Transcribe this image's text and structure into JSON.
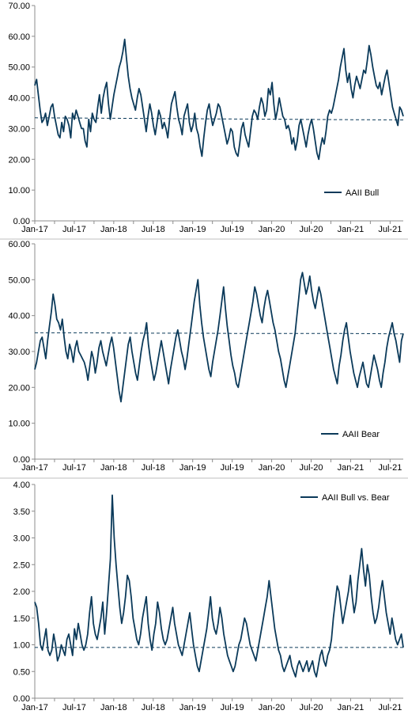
{
  "colors": {
    "series": "#0b3a5a",
    "axis": "#8c8c8c",
    "divider": "#bfbfbf"
  },
  "chart_data": [
    {
      "type": "line",
      "title": "",
      "xlabel": "",
      "ylabel": "",
      "x_tick_labels": [
        "Jan-17",
        "Jul-17",
        "Jan-18",
        "Jul-18",
        "Jan-19",
        "Jul-19",
        "Jan-20",
        "Jul-20",
        "Jan-21",
        "Jul-21"
      ],
      "y_tick_labels": [
        "0.00",
        "10.00",
        "20.00",
        "30.00",
        "40.00",
        "50.00",
        "60.00",
        "70.00"
      ],
      "ylim": [
        0,
        70
      ],
      "xlim": [
        0,
        56
      ],
      "grid": false,
      "legend_position": "bottom-right",
      "series": [
        {
          "name": "AAII Bull",
          "style": "solid",
          "values": [
            44,
            46,
            41,
            36,
            32,
            33,
            35,
            31,
            34,
            37,
            38,
            34,
            31,
            28,
            27,
            32,
            29,
            34,
            33,
            31,
            27,
            35,
            33,
            36,
            34,
            32,
            30,
            30,
            26,
            24,
            33,
            29,
            35,
            33,
            32,
            37,
            41,
            35,
            40,
            43,
            45,
            38,
            33,
            37,
            41,
            44,
            47,
            50,
            52,
            55,
            59,
            53,
            47,
            43,
            40,
            38,
            36,
            40,
            43,
            41,
            37,
            33,
            29,
            34,
            38,
            35,
            31,
            28,
            32,
            36,
            34,
            30,
            32,
            30,
            27,
            33,
            38,
            40,
            42,
            37,
            33,
            31,
            28,
            34,
            36,
            38,
            32,
            29,
            31,
            35,
            30,
            28,
            24,
            21,
            27,
            32,
            36,
            38,
            34,
            31,
            33,
            35,
            38,
            37,
            34,
            31,
            28,
            25,
            27,
            30,
            29,
            24,
            22,
            21,
            25,
            30,
            32,
            28,
            26,
            24,
            29,
            34,
            36,
            35,
            33,
            37,
            40,
            38,
            34,
            36,
            43,
            41,
            45,
            38,
            33,
            36,
            40,
            37,
            34,
            33,
            30,
            31,
            29,
            25,
            27,
            23,
            26,
            31,
            33,
            30,
            27,
            24,
            28,
            31,
            33,
            30,
            26,
            22,
            20,
            24,
            27,
            25,
            29,
            34,
            36,
            35,
            37,
            40,
            43,
            46,
            50,
            53,
            56,
            49,
            45,
            48,
            43,
            40,
            44,
            47,
            45,
            43,
            46,
            49,
            48,
            52,
            57,
            54,
            50,
            47,
            44,
            43,
            45,
            41,
            44,
            47,
            49,
            45,
            41,
            37,
            35,
            33,
            31,
            37,
            36,
            34
          ]
        },
        {
          "name": "",
          "style": "dashed",
          "values": [
            33.5,
            33.4,
            33.3,
            33.2,
            33.1,
            33.0,
            32.9,
            32.8
          ]
        }
      ]
    },
    {
      "type": "line",
      "title": "",
      "xlabel": "",
      "ylabel": "",
      "x_tick_labels": [
        "Jan-17",
        "Jul-17",
        "Jan-18",
        "Jul-18",
        "Jan-19",
        "Jul-19",
        "Jan-20",
        "Jul-20",
        "Jan-21",
        "Jul-21"
      ],
      "y_tick_labels": [
        "0.00",
        "10.00",
        "20.00",
        "30.00",
        "40.00",
        "50.00",
        "60.00"
      ],
      "ylim": [
        0,
        60
      ],
      "xlim": [
        0,
        56
      ],
      "grid": false,
      "legend_position": "bottom-right",
      "series": [
        {
          "name": "AAII Bear",
          "style": "solid",
          "values": [
            25,
            27,
            30,
            33,
            34,
            31,
            28,
            33,
            37,
            41,
            46,
            43,
            39,
            38,
            36,
            39,
            34,
            30,
            28,
            32,
            30,
            27,
            31,
            33,
            30,
            29,
            28,
            27,
            25,
            22,
            26,
            30,
            28,
            24,
            27,
            31,
            33,
            30,
            28,
            26,
            29,
            32,
            34,
            31,
            27,
            23,
            19,
            16,
            20,
            24,
            28,
            32,
            34,
            30,
            27,
            24,
            22,
            26,
            30,
            33,
            35,
            38,
            32,
            28,
            25,
            22,
            24,
            27,
            30,
            33,
            30,
            27,
            24,
            21,
            25,
            28,
            31,
            34,
            36,
            33,
            30,
            28,
            25,
            28,
            32,
            36,
            40,
            44,
            47,
            50,
            43,
            38,
            34,
            31,
            28,
            25,
            23,
            27,
            30,
            33,
            36,
            40,
            44,
            48,
            42,
            37,
            33,
            29,
            26,
            24,
            21,
            20,
            23,
            26,
            29,
            32,
            35,
            38,
            41,
            44,
            48,
            46,
            43,
            40,
            38,
            42,
            45,
            47,
            44,
            41,
            38,
            36,
            33,
            30,
            28,
            25,
            22,
            20,
            23,
            26,
            29,
            32,
            35,
            40,
            45,
            50,
            52,
            49,
            46,
            48,
            51,
            47,
            44,
            42,
            45,
            48,
            46,
            43,
            40,
            37,
            34,
            31,
            28,
            25,
            23,
            21,
            26,
            29,
            33,
            36,
            38,
            34,
            30,
            27,
            24,
            22,
            20,
            23,
            25,
            27,
            24,
            21,
            20,
            23,
            26,
            29,
            27,
            25,
            22,
            20,
            24,
            27,
            31,
            34,
            36,
            38,
            35,
            33,
            30,
            27,
            33,
            35
          ]
        },
        {
          "name": "",
          "style": "dashed",
          "values": [
            35.2,
            35.2,
            35.1,
            35.1,
            35.0,
            35.0,
            35.0,
            34.9
          ]
        }
      ]
    },
    {
      "type": "line",
      "title": "",
      "xlabel": "",
      "ylabel": "",
      "x_tick_labels": [
        "Jan-17",
        "Jul-17",
        "Jan-18",
        "Jul-18",
        "Jan-19",
        "Jul-19",
        "Jan-20",
        "Jul-20",
        "Jan-21",
        "Jul-21"
      ],
      "y_tick_labels": [
        "0.00",
        "0.50",
        "1.00",
        "1.50",
        "2.00",
        "2.50",
        "3.00",
        "3.50",
        "4.00"
      ],
      "ylim": [
        0,
        4
      ],
      "xlim": [
        0,
        56
      ],
      "grid": false,
      "legend_position": "top-right",
      "series": [
        {
          "name": "AAII Bull vs. Bear",
          "style": "solid",
          "values": [
            1.8,
            1.7,
            1.4,
            1.0,
            0.9,
            1.1,
            1.3,
            0.9,
            0.8,
            0.9,
            1.2,
            1.0,
            0.7,
            0.8,
            1.0,
            0.9,
            0.8,
            1.1,
            1.2,
            1.0,
            0.8,
            1.3,
            1.1,
            1.4,
            1.2,
            1.0,
            0.9,
            1.0,
            1.2,
            1.6,
            1.9,
            1.4,
            1.2,
            1.1,
            1.3,
            1.5,
            1.8,
            1.2,
            1.6,
            2.1,
            2.6,
            3.8,
            3.0,
            2.5,
            2.1,
            1.7,
            1.4,
            1.6,
            1.9,
            2.3,
            2.2,
            1.9,
            1.5,
            1.3,
            1.1,
            1.0,
            1.2,
            1.5,
            1.7,
            1.9,
            1.4,
            1.1,
            0.9,
            1.2,
            1.4,
            1.8,
            1.6,
            1.3,
            1.1,
            1.0,
            1.1,
            1.3,
            1.5,
            1.7,
            1.4,
            1.2,
            1.0,
            0.9,
            0.8,
            1.0,
            1.2,
            1.4,
            1.6,
            1.3,
            1.0,
            0.8,
            0.6,
            0.5,
            0.7,
            0.9,
            1.1,
            1.3,
            1.6,
            1.9,
            1.5,
            1.3,
            1.2,
            1.4,
            1.7,
            1.5,
            1.2,
            1.0,
            0.8,
            0.7,
            0.6,
            0.5,
            0.6,
            0.8,
            1.0,
            1.1,
            1.3,
            1.5,
            1.4,
            1.2,
            1.0,
            0.9,
            0.8,
            0.7,
            0.9,
            1.1,
            1.3,
            1.5,
            1.7,
            1.9,
            2.2,
            1.9,
            1.6,
            1.3,
            1.1,
            0.9,
            0.8,
            0.6,
            0.5,
            0.6,
            0.7,
            0.8,
            0.6,
            0.5,
            0.4,
            0.6,
            0.7,
            0.6,
            0.5,
            0.6,
            0.7,
            0.5,
            0.6,
            0.7,
            0.5,
            0.4,
            0.6,
            0.8,
            0.9,
            0.7,
            0.6,
            0.8,
            0.9,
            1.1,
            1.5,
            1.8,
            2.1,
            2.0,
            1.7,
            1.4,
            1.6,
            1.8,
            2.0,
            2.3,
            1.9,
            1.6,
            1.8,
            2.2,
            2.5,
            2.8,
            2.4,
            2.1,
            2.5,
            2.3,
            1.9,
            1.6,
            1.4,
            1.5,
            1.7,
            2.0,
            2.2,
            1.9,
            1.6,
            1.4,
            1.2,
            1.5,
            1.3,
            1.1,
            1.0,
            1.1,
            1.2,
            0.95
          ]
        },
        {
          "name": "",
          "style": "dashed",
          "values": [
            0.95,
            0.95,
            0.95,
            0.95,
            0.95,
            0.95,
            0.95,
            0.95
          ]
        }
      ]
    }
  ]
}
